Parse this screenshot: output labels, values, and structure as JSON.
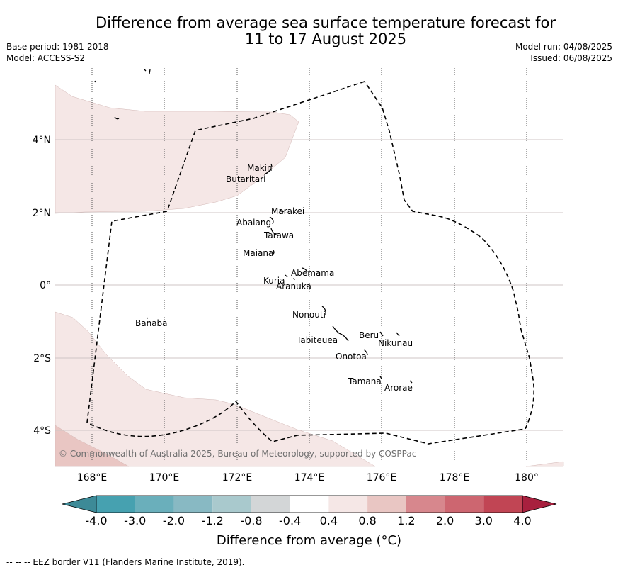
{
  "title_line1": "Difference from average sea surface temperature forecast for",
  "title_line2": "11 to 17 August 2025",
  "base_period": "Base period: 1981-2018",
  "model": "Model: ACCESS-S2",
  "model_run": "Model run: 04/08/2025",
  "issued": "Issued: 06/08/2025",
  "copyright": "© Commonwealth of Australia 2025, Bureau of Meteorology, supported by COSPPac",
  "lon_labels": [
    "168°E",
    "170°E",
    "172°E",
    "174°E",
    "176°E",
    "178°E",
    "180°"
  ],
  "lat_labels": [
    "4°N",
    "2°N",
    "0°",
    "2°S",
    "4°S"
  ],
  "islands": [
    "Makin",
    "Butaritari",
    "Marakei",
    "Abaiang",
    "Tarawa",
    "Maiana",
    "Abemama",
    "Kuria",
    "Aranuka",
    "Nonouti",
    "Banaba",
    "Beru",
    "Nikunau",
    "Tabiteuea",
    "Onotoa",
    "Tamana",
    "Arorae"
  ],
  "colorbar": {
    "ticks": [
      "-4.0",
      "-3.0",
      "-2.0",
      "-1.2",
      "-0.8",
      "-0.4",
      "0.4",
      "0.8",
      "1.2",
      "2.0",
      "3.0",
      "4.0"
    ],
    "colors": [
      "#3d8a97",
      "#46a1b0",
      "#6aafbb",
      "#88b9c3",
      "#a9c9cd",
      "#d3d6d7",
      "#ffffff",
      "#f5e7e6",
      "#e9c6c3",
      "#d7878d",
      "#cd6670",
      "#c14554",
      "#a8203e"
    ],
    "label": "Difference from average (°C)"
  },
  "footer": "--  --  -- EEZ border V11 (Flanders Marine Institute, 2019)."
}
